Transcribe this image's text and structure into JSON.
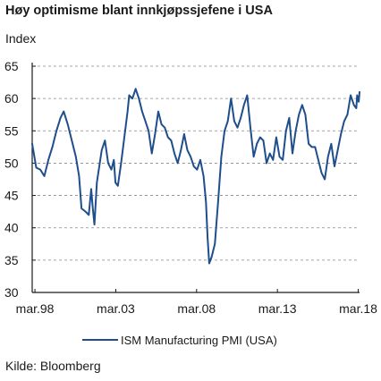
{
  "chart_data": {
    "type": "line",
    "title": "Høy optimisme blant innkjøpssjefene i USA",
    "ylabel": "Index",
    "source": "Kilde: Bloomberg",
    "ylim": [
      30,
      65
    ],
    "yticks": [
      30,
      35,
      40,
      45,
      50,
      55,
      60,
      65
    ],
    "xlim": [
      1998.0,
      2018.25
    ],
    "xticks": [
      {
        "label": "mar.98",
        "x": 1998.17
      },
      {
        "label": "mar.03",
        "x": 2003.17
      },
      {
        "label": "mar.08",
        "x": 2008.17
      },
      {
        "label": "mar.13",
        "x": 2013.17
      },
      {
        "label": "mar.18",
        "x": 2018.17
      }
    ],
    "grid": "horizontal-dashed",
    "legend_position": "bottom",
    "colors": {
      "series": "#1f4e8c",
      "grid": "#8a8a8a",
      "axis": "#1a1a1a"
    },
    "series": [
      {
        "name": "ISM Manufacturing PMI (USA)",
        "points": [
          [
            1998.0,
            53.0
          ],
          [
            1998.25,
            49.3
          ],
          [
            1998.5,
            49.0
          ],
          [
            1998.75,
            48.0
          ],
          [
            1999.0,
            50.5
          ],
          [
            1999.25,
            52.5
          ],
          [
            1999.5,
            55.0
          ],
          [
            1999.75,
            57.0
          ],
          [
            1999.95,
            58.0
          ],
          [
            2000.2,
            56.0
          ],
          [
            2000.5,
            53.0
          ],
          [
            2000.7,
            51.0
          ],
          [
            2000.9,
            48.0
          ],
          [
            2001.05,
            43.0
          ],
          [
            2001.3,
            42.5
          ],
          [
            2001.5,
            42.0
          ],
          [
            2001.65,
            46.0
          ],
          [
            2001.75,
            43.0
          ],
          [
            2001.85,
            40.5
          ],
          [
            2002.0,
            47.0
          ],
          [
            2002.3,
            52.0
          ],
          [
            2002.5,
            53.5
          ],
          [
            2002.7,
            50.0
          ],
          [
            2002.9,
            49.0
          ],
          [
            2003.05,
            50.5
          ],
          [
            2003.15,
            47.0
          ],
          [
            2003.3,
            46.5
          ],
          [
            2003.5,
            50.0
          ],
          [
            2003.7,
            54.0
          ],
          [
            2003.9,
            58.0
          ],
          [
            2004.0,
            60.5
          ],
          [
            2004.2,
            60.0
          ],
          [
            2004.4,
            61.5
          ],
          [
            2004.6,
            60.0
          ],
          [
            2004.8,
            58.0
          ],
          [
            2005.0,
            56.5
          ],
          [
            2005.2,
            55.0
          ],
          [
            2005.4,
            51.5
          ],
          [
            2005.6,
            54.5
          ],
          [
            2005.8,
            58.0
          ],
          [
            2006.0,
            56.0
          ],
          [
            2006.2,
            55.5
          ],
          [
            2006.4,
            54.0
          ],
          [
            2006.6,
            53.5
          ],
          [
            2006.8,
            51.5
          ],
          [
            2007.0,
            50.0
          ],
          [
            2007.2,
            52.0
          ],
          [
            2007.4,
            54.5
          ],
          [
            2007.6,
            52.0
          ],
          [
            2007.8,
            51.0
          ],
          [
            2008.0,
            49.5
          ],
          [
            2008.2,
            49.0
          ],
          [
            2008.4,
            50.5
          ],
          [
            2008.6,
            48.0
          ],
          [
            2008.75,
            44.0
          ],
          [
            2008.85,
            38.5
          ],
          [
            2008.95,
            34.5
          ],
          [
            2009.1,
            35.5
          ],
          [
            2009.3,
            37.5
          ],
          [
            2009.5,
            44.0
          ],
          [
            2009.7,
            51.0
          ],
          [
            2009.9,
            55.0
          ],
          [
            2010.1,
            56.5
          ],
          [
            2010.3,
            60.0
          ],
          [
            2010.5,
            56.5
          ],
          [
            2010.7,
            55.5
          ],
          [
            2010.9,
            57.0
          ],
          [
            2011.1,
            59.0
          ],
          [
            2011.3,
            60.5
          ],
          [
            2011.5,
            55.5
          ],
          [
            2011.7,
            51.0
          ],
          [
            2011.9,
            53.0
          ],
          [
            2012.1,
            54.0
          ],
          [
            2012.3,
            53.5
          ],
          [
            2012.5,
            50.0
          ],
          [
            2012.7,
            51.5
          ],
          [
            2012.9,
            50.5
          ],
          [
            2013.1,
            54.0
          ],
          [
            2013.3,
            51.0
          ],
          [
            2013.5,
            50.5
          ],
          [
            2013.7,
            55.0
          ],
          [
            2013.9,
            57.0
          ],
          [
            2014.1,
            51.5
          ],
          [
            2014.3,
            55.0
          ],
          [
            2014.5,
            57.5
          ],
          [
            2014.7,
            59.0
          ],
          [
            2014.9,
            57.5
          ],
          [
            2015.1,
            53.0
          ],
          [
            2015.3,
            52.5
          ],
          [
            2015.5,
            52.5
          ],
          [
            2015.7,
            50.5
          ],
          [
            2015.9,
            48.5
          ],
          [
            2016.1,
            47.5
          ],
          [
            2016.3,
            51.0
          ],
          [
            2016.5,
            53.0
          ],
          [
            2016.7,
            49.5
          ],
          [
            2016.9,
            52.0
          ],
          [
            2017.1,
            54.5
          ],
          [
            2017.3,
            56.5
          ],
          [
            2017.5,
            57.5
          ],
          [
            2017.7,
            60.5
          ],
          [
            2017.9,
            59.0
          ],
          [
            2018.05,
            58.5
          ],
          [
            2018.1,
            60.5
          ],
          [
            2018.2,
            59.5
          ],
          [
            2018.25,
            61.0
          ]
        ]
      }
    ]
  }
}
